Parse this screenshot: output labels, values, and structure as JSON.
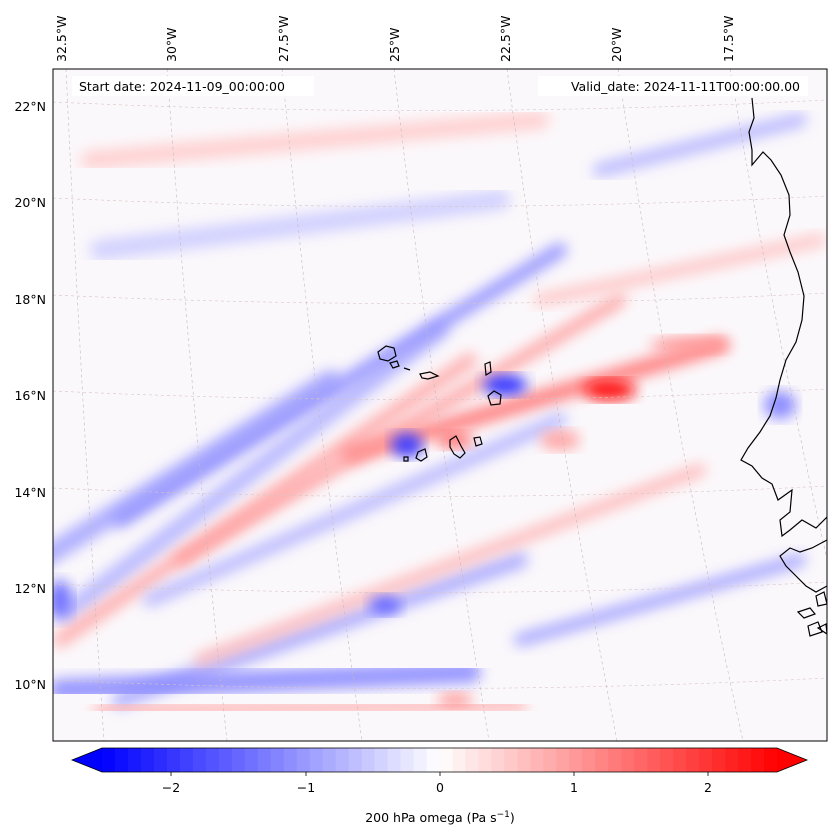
{
  "map": {
    "start_date_text": "Start date: 2024-11-09_00:00:00",
    "valid_date_text": "Valid_date: 2024-11-11T00:00:00.00",
    "field": "200 hPa omega",
    "colormap": "bwr",
    "colors": {
      "negative": "#0000ff",
      "zero": "#ffffff",
      "positive": "#ff0000",
      "coast": "#000000",
      "grid": "#b0b0b0"
    }
  },
  "axes": {
    "lon_labels": [
      "32.5°W",
      "30°W",
      "27.5°W",
      "25°W",
      "22.5°W",
      "20°W",
      "17.5°W"
    ],
    "lat_labels": [
      "22°N",
      "20°N",
      "18°N",
      "16°N",
      "14°N",
      "12°N",
      "10°N"
    ]
  },
  "colorbar": {
    "label_prefix": "200 hPa omega (Pa s",
    "label_sup": "−1",
    "label_suffix": ")",
    "ticks": [
      "−2",
      "−1",
      "0",
      "1",
      "2"
    ],
    "range": [
      -2.6,
      2.6
    ],
    "extend": "both"
  },
  "features": {
    "bands": [
      {
        "sign": -1,
        "strength": 0.35
      },
      {
        "sign": -1,
        "strength": 0.3
      },
      {
        "sign": 1,
        "strength": 0.35
      },
      {
        "sign": -1,
        "strength": 0.45
      },
      {
        "sign": 1,
        "strength": 0.55
      },
      {
        "sign": -1,
        "strength": 0.3
      },
      {
        "sign": 1,
        "strength": 0.4
      },
      {
        "sign": -1,
        "strength": 0.35
      },
      {
        "sign": 1,
        "strength": 0.3
      },
      {
        "sign": -1,
        "strength": 0.45
      },
      {
        "sign": 1,
        "strength": 0.3
      },
      {
        "sign": -1,
        "strength": 0.4
      },
      {
        "sign": -1,
        "strength": 0.3
      },
      {
        "sign": 1,
        "strength": 0.25
      },
      {
        "sign": -1,
        "strength": 0.2
      },
      {
        "sign": 1,
        "strength": 0.2
      }
    ],
    "blobs": [
      {
        "sign": 1,
        "strength": 0.95
      },
      {
        "sign": -1,
        "strength": 0.75
      },
      {
        "sign": -1,
        "strength": 0.8
      },
      {
        "sign": -1,
        "strength": 0.55
      },
      {
        "sign": 1,
        "strength": 0.55
      },
      {
        "sign": -1,
        "strength": 0.45
      },
      {
        "sign": 1,
        "strength": 0.35
      },
      {
        "sign": 1,
        "strength": 0.4
      },
      {
        "sign": -1,
        "strength": 0.6
      },
      {
        "sign": 1,
        "strength": 0.4
      }
    ]
  }
}
